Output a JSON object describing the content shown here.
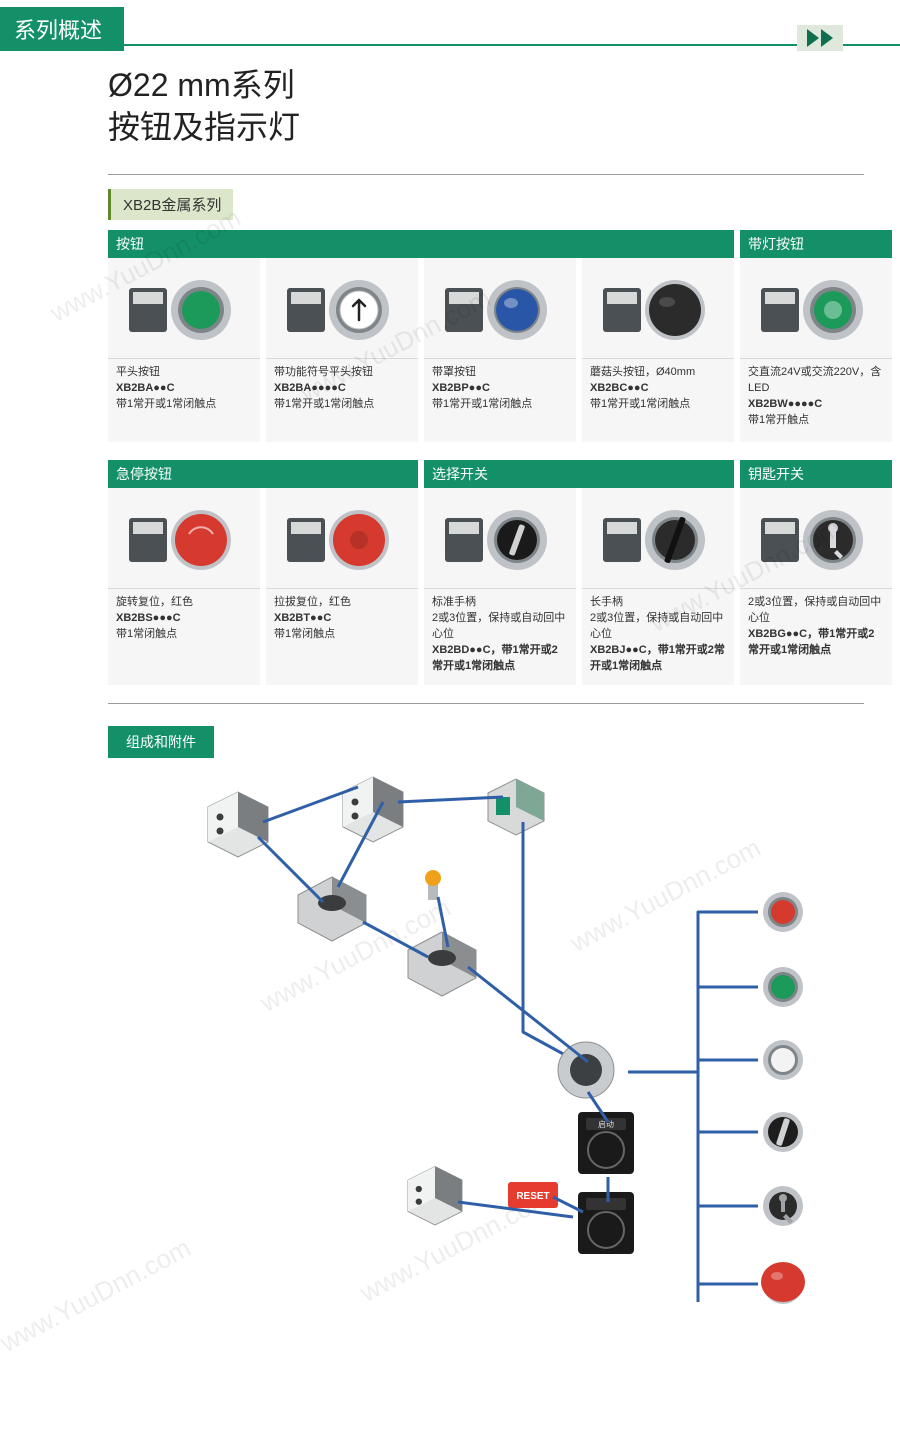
{
  "colors": {
    "brand_green": "#149068",
    "pale_green": "#dbe6ca",
    "olive_border": "#5e8a2a",
    "card_bg": "#f6f6f6",
    "card_divider": "#d9d9d9",
    "rule_gray": "#9b9b9b",
    "text": "#333333",
    "connector_blue": "#2f5fa7",
    "watermark": "rgba(0,0,0,0.07)",
    "red": "#d63a2e",
    "btn_green": "#1c9a5a",
    "btn_blue": "#2956a6",
    "btn_black": "#2b2b2b",
    "btn_white": "#ffffff",
    "btn_metal": "#bfc3c7",
    "btn_metal_dark": "#7e8589",
    "btn_body": "#4b5054",
    "led_amber": "#f0a11a"
  },
  "header": {
    "tab": "系列概述"
  },
  "title": {
    "line1": "Ø22 mm系列",
    "line2": "按钮及指示灯"
  },
  "subseries": "XB2B金属系列",
  "groups_row1": [
    {
      "label": "按钮",
      "span": 4
    },
    {
      "label": "带灯按钮",
      "span": 1
    }
  ],
  "products_row1": [
    {
      "img": "flat_green",
      "line1": "平头按钮",
      "code": "XB2BA●●C",
      "line3": "带1常开或1常闭触点"
    },
    {
      "img": "flat_arrow",
      "line1": "带功能符号平头按钮",
      "code": "XB2BA●●●●C",
      "line3": "带1常开或1常闭触点"
    },
    {
      "img": "dome_blue",
      "line1": "带罩按钮",
      "code": "XB2BP●●C",
      "line3": "带1常开或1常闭触点"
    },
    {
      "img": "mush_black",
      "line1": "蘑菇头按钮，Ø40mm",
      "code": "XB2BC●●C",
      "line3": "带1常开或1常闭触点"
    },
    {
      "img": "illum_green",
      "line1": "交直流24V或交流220V，含LED",
      "code": "XB2BW●●●●C",
      "line3": "带1常开触点"
    }
  ],
  "groups_row2": [
    {
      "label": "急停按钮",
      "span": 2
    },
    {
      "label": "选择开关",
      "span": 2
    },
    {
      "label": "钥匙开关",
      "span": 1
    }
  ],
  "products_row2": [
    {
      "img": "estop_turn",
      "line1": "旋转复位，红色",
      "code": "XB2BS●●●C",
      "line3": "带1常闭触点"
    },
    {
      "img": "estop_pull",
      "line1": "拉拔复位，红色",
      "code": "XB2BT●●C",
      "line3": "带1常闭触点"
    },
    {
      "img": "sel_short",
      "line1": "标准手柄",
      "line2": "2或3位置，保持或自动回中心位",
      "code": "XB2BD●●C，带1常开或2常开或1常闭触点"
    },
    {
      "img": "sel_long",
      "line1": "长手柄",
      "line2": "2或3位置，保持或自动回中心位",
      "code": "XB2BJ●●C，带1常开或2常开或1常闭触点"
    },
    {
      "img": "key_switch",
      "line1": "2或3位置，保持或自动回中心位",
      "code": "XB2BG●●C，带1常开或2常开或1常闭触点"
    }
  ],
  "accessories_label": "组成和附件",
  "diagram": {
    "reset_label": "RESET",
    "plate_label": "启动",
    "connectors": {
      "stroke": "#2f5fa7",
      "width": 3
    },
    "nodes": {
      "contact_block": {
        "fill_body": "#e3e4e4",
        "fill_dark": "#7b7e81",
        "screws": "#3a3c3d"
      },
      "mount_collar": {
        "outer": "#c9cccf",
        "inner": "#3d4043"
      },
      "label_plate": {
        "bg": "#1a1a1a",
        "slot": "#bdbdbd"
      },
      "reset_tag": {
        "bg": "#e53c2f",
        "text": "#ffffff"
      }
    },
    "head_stack": [
      {
        "kind": "round",
        "cap": "#d63a2e"
      },
      {
        "kind": "round",
        "cap": "#1c9a5a"
      },
      {
        "kind": "round",
        "cap": "#f3f3f3"
      },
      {
        "kind": "selector",
        "cap": "#1d1d1d"
      },
      {
        "kind": "key",
        "cap": "#9fa3a6"
      },
      {
        "kind": "mushroom",
        "cap": "#d63a2e"
      }
    ]
  },
  "watermark_text": "www.YuuDnn.com"
}
